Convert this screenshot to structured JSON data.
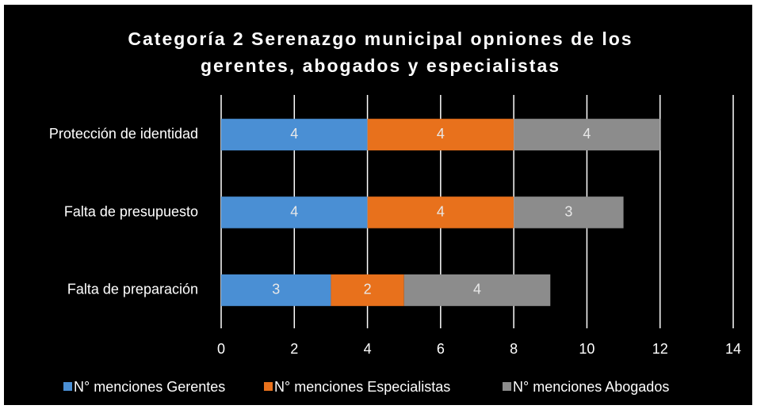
{
  "chart_data": {
    "type": "stacked_bar_horizontal",
    "title": "Categoría 2 Serenazgo municipal opniones de los gerentes, abogados y especialistas",
    "categories": [
      "Protección de identidad",
      "Falta de presupuesto",
      "Falta de preparación"
    ],
    "series": [
      {
        "name": "N° menciones Gerentes",
        "color": "#4a8fd4",
        "values": [
          4,
          4,
          3
        ]
      },
      {
        "name": "N° menciones Especialistas",
        "color": "#e8711c",
        "values": [
          4,
          4,
          2
        ]
      },
      {
        "name": "N° menciones Abogados",
        "color": "#8c8c8c",
        "values": [
          4,
          3,
          4
        ]
      }
    ],
    "xlim": [
      0,
      14
    ],
    "xticks": [
      0,
      2,
      4,
      6,
      8,
      10,
      12,
      14
    ],
    "grid": true,
    "legend": "bottom"
  }
}
